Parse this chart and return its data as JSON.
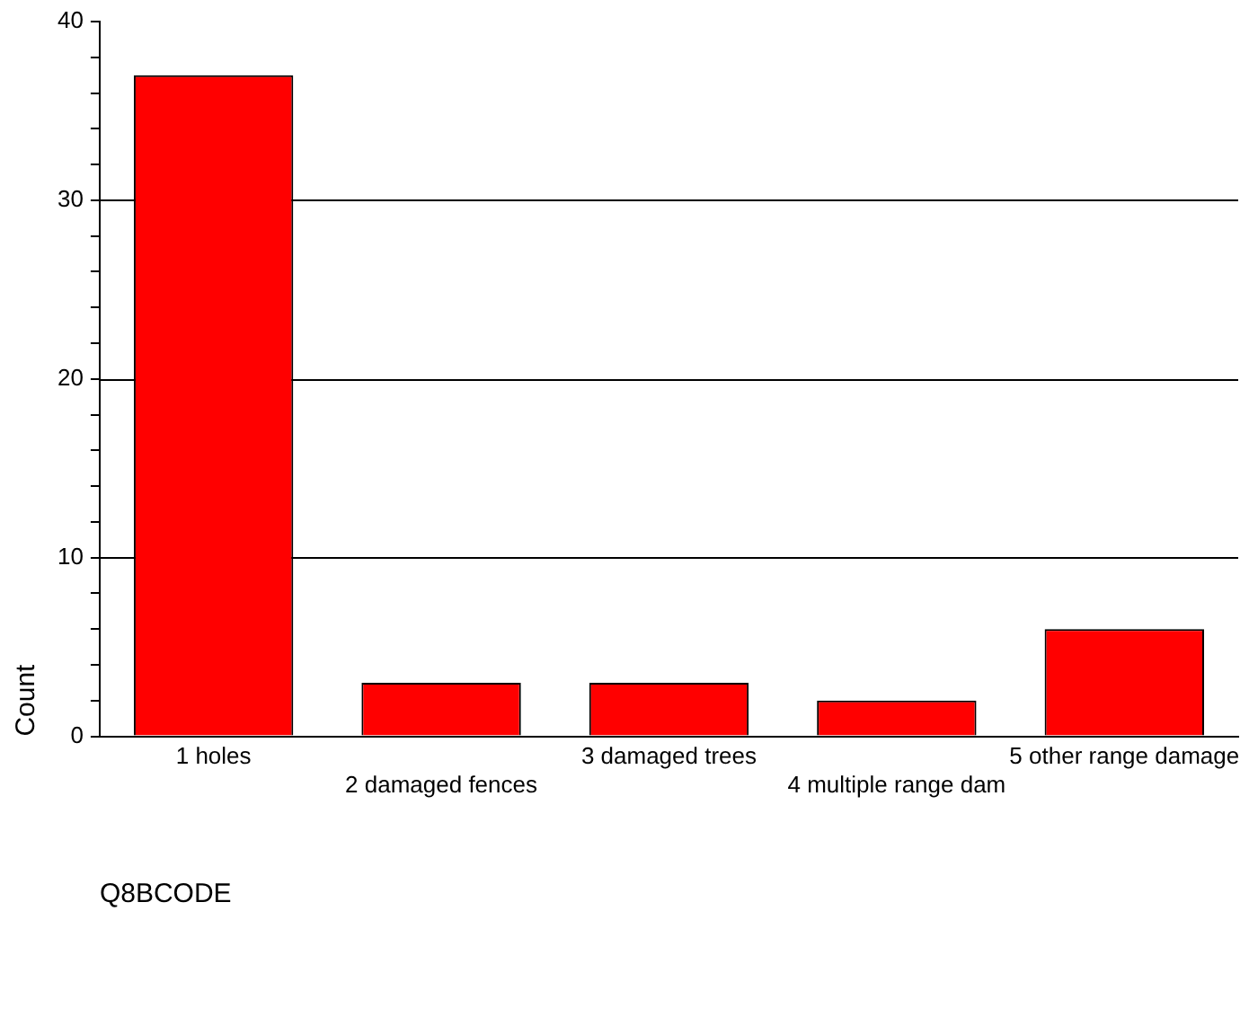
{
  "chart_data": {
    "type": "bar",
    "xlabel": "Q8BCODE",
    "ylabel": "Count",
    "categories": [
      "1 holes",
      "2 damaged fences",
      "3 damaged trees",
      "4 multiple range dam",
      "5 other range damage"
    ],
    "values": [
      37,
      3,
      3,
      2,
      6
    ],
    "color": "#ff0000",
    "ylim": [
      0,
      40
    ],
    "yticks": [
      0,
      {
        "value": 2,
        "label": null
      },
      {
        "value": 4,
        "label": null
      },
      {
        "value": 6,
        "label": null
      },
      {
        "value": 8,
        "label": null
      },
      10,
      {
        "value": 12,
        "label": null
      },
      {
        "value": 14,
        "label": null
      },
      {
        "value": 16,
        "label": null
      },
      {
        "value": 18,
        "label": null
      },
      20,
      {
        "value": 22,
        "label": null
      },
      {
        "value": 24,
        "label": null
      },
      {
        "value": 26,
        "label": null
      },
      {
        "value": 28,
        "label": null
      },
      30,
      {
        "value": 32,
        "label": null
      },
      {
        "value": 34,
        "label": null
      },
      {
        "value": 36,
        "label": null
      },
      {
        "value": 38,
        "label": null
      },
      40
    ],
    "grid": "y",
    "legend": false
  }
}
